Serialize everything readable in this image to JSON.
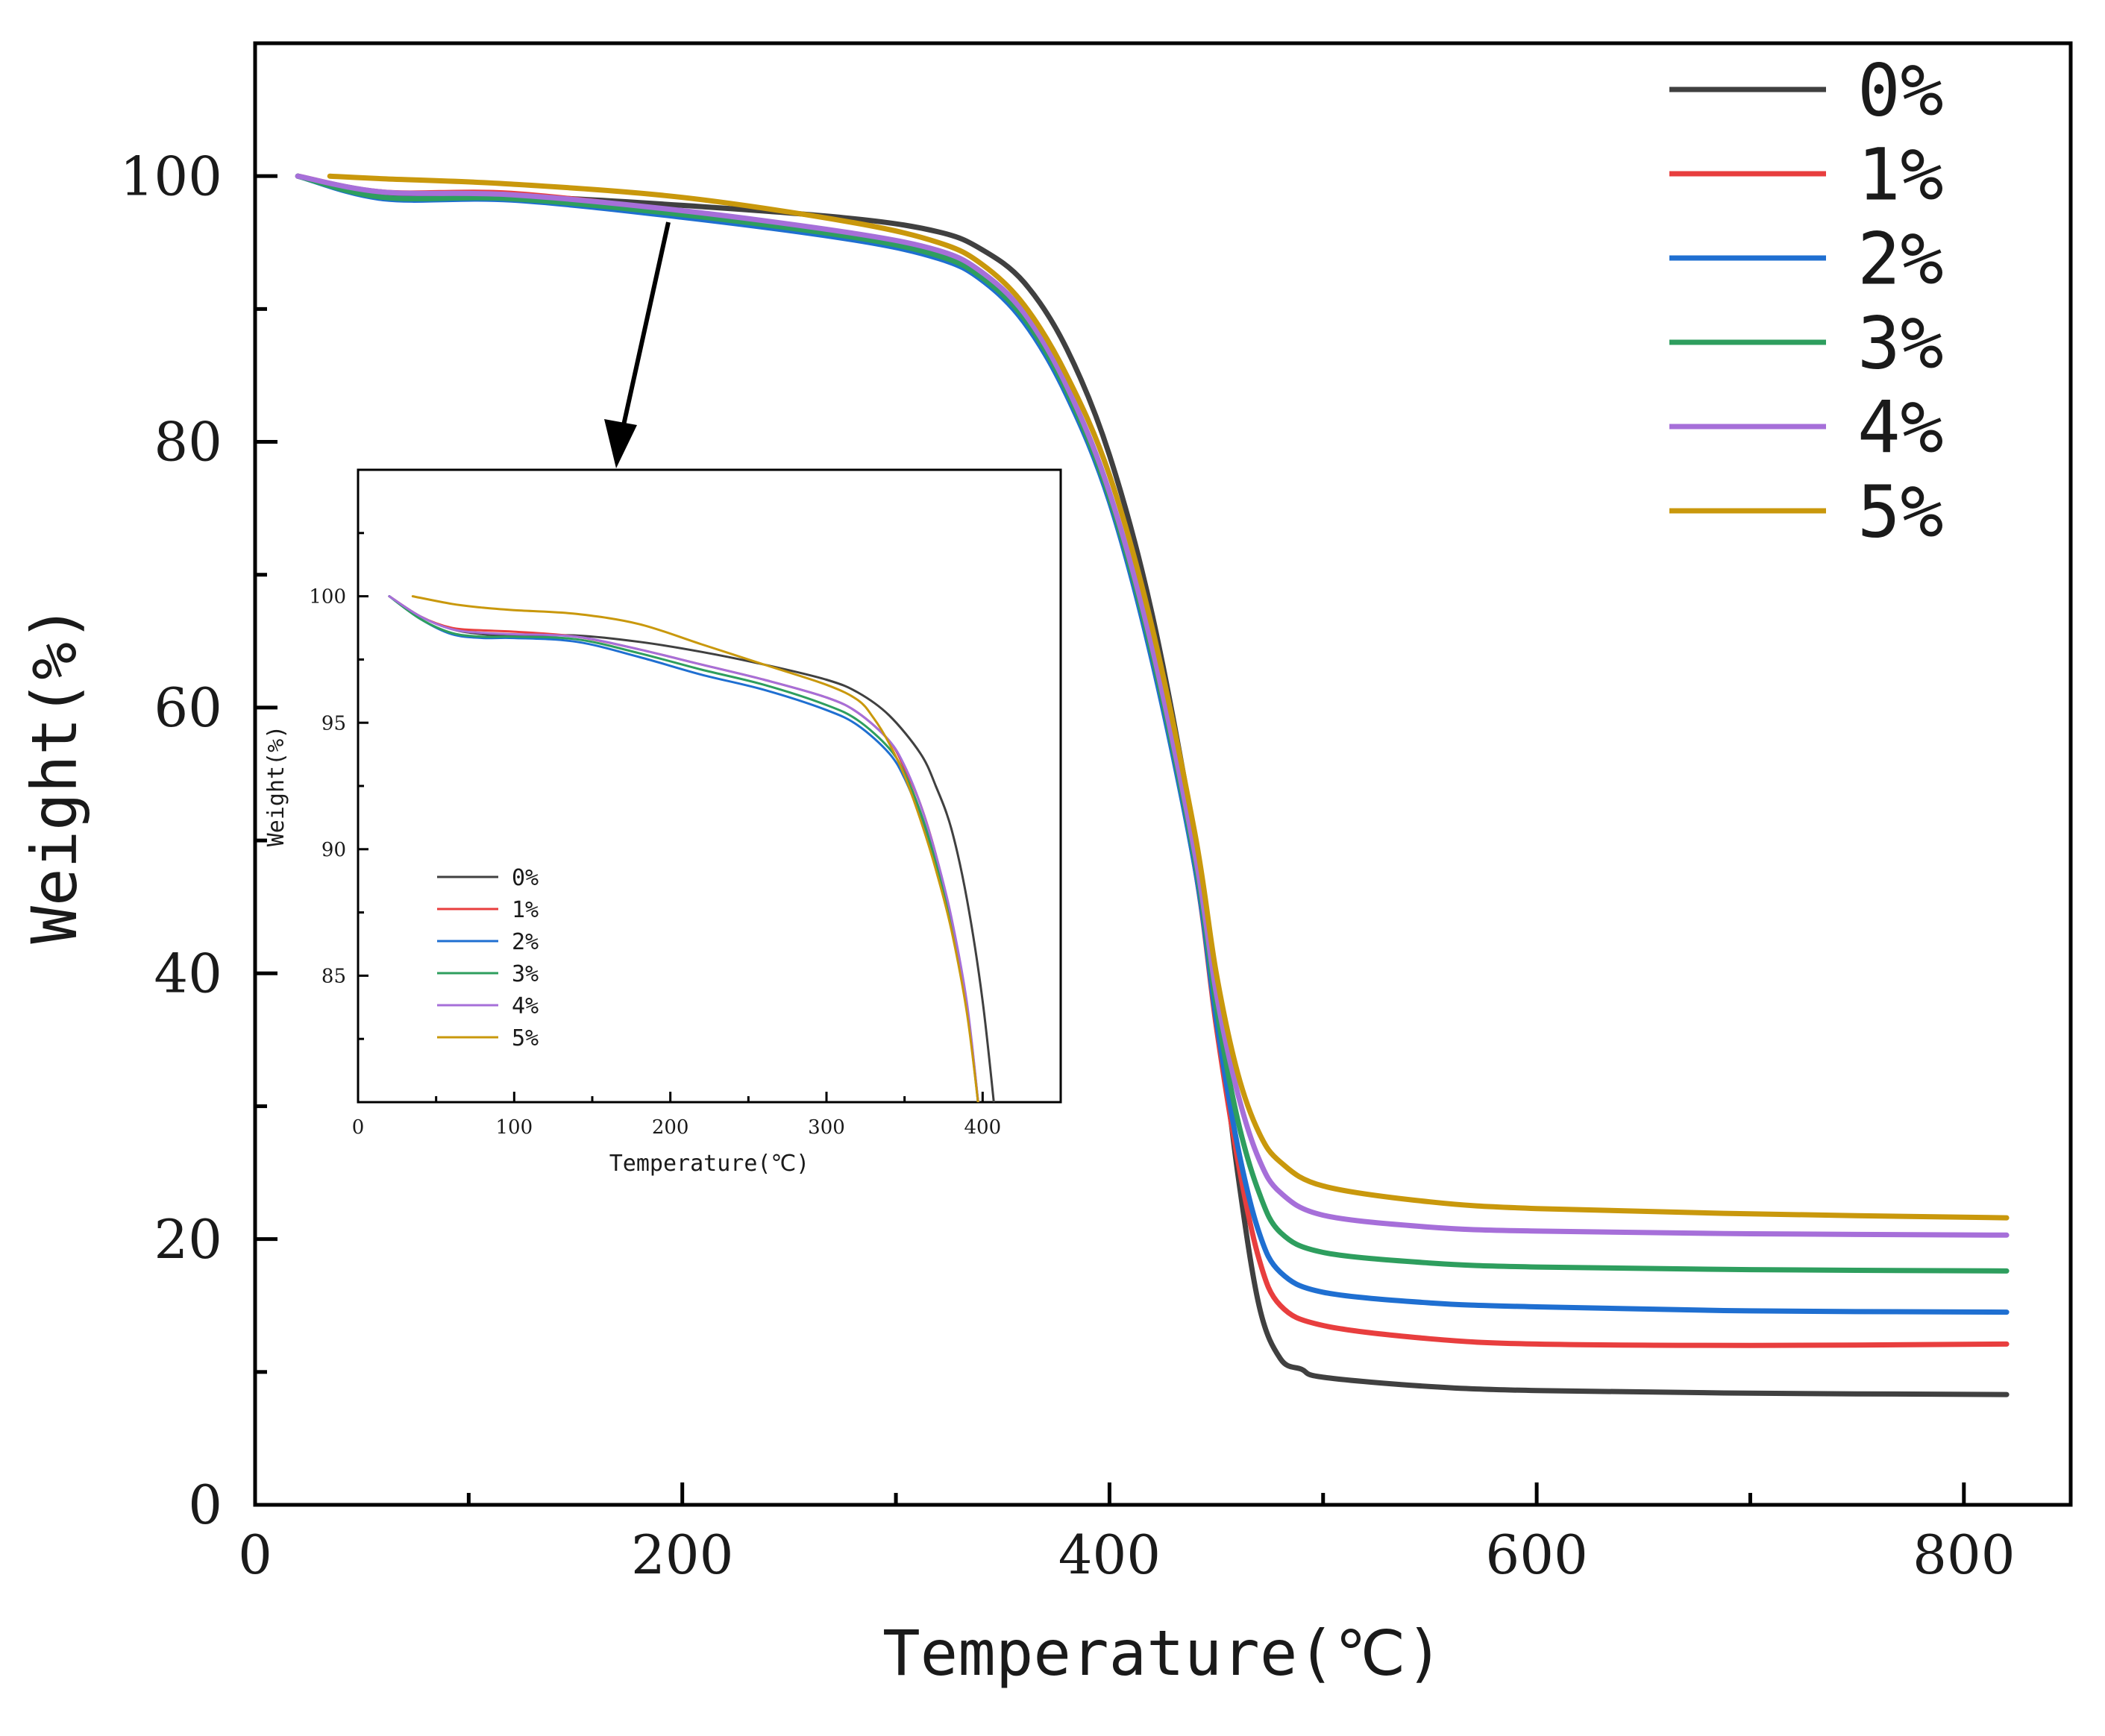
{
  "chart_data": [
    {
      "type": "line",
      "xlabel": "Temperature(℃)",
      "ylabel": "Weight(%)",
      "xlim": [
        0,
        850
      ],
      "ylim": [
        0,
        110
      ],
      "xticks": [
        0,
        200,
        400,
        600,
        800
      ],
      "xtick_labels": [
        "0",
        "200",
        "400",
        "600",
        "800"
      ],
      "yticks": [
        0,
        20,
        40,
        60,
        80,
        100
      ],
      "ytick_labels": [
        "0",
        "20",
        "40",
        "60",
        "80",
        "100"
      ],
      "legend_position": "top-right",
      "series": [
        {
          "name": "0%",
          "color": "#404040",
          "x": [
            20,
            60,
            120,
            200,
            280,
            320,
            340,
            360,
            380,
            400,
            420,
            440,
            450,
            460,
            470,
            480,
            490,
            500,
            550,
            600,
            700,
            820
          ],
          "y": [
            100,
            98.6,
            98.5,
            97.8,
            96.8,
            95.8,
            94.5,
            92.0,
            87.0,
            79.0,
            67.0,
            50.0,
            38.0,
            25.0,
            15.0,
            11.0,
            10.2,
            9.6,
            8.9,
            8.6,
            8.4,
            8.3
          ]
        },
        {
          "name": "1%",
          "color": "#e83e3e",
          "x": [
            20,
            60,
            120,
            200,
            280,
            320,
            340,
            360,
            380,
            400,
            420,
            440,
            450,
            460,
            470,
            480,
            500,
            550,
            600,
            700,
            820
          ],
          "y": [
            100,
            98.8,
            98.7,
            97.3,
            95.6,
            94.3,
            92.6,
            89.5,
            84.0,
            76.0,
            64.0,
            48.0,
            36.0,
            26.0,
            18.5,
            15.0,
            13.5,
            12.5,
            12.1,
            12.0,
            12.1
          ]
        },
        {
          "name": "2%",
          "color": "#1f6fd1",
          "x": [
            20,
            60,
            120,
            200,
            280,
            320,
            340,
            360,
            380,
            400,
            420,
            440,
            450,
            460,
            470,
            480,
            500,
            550,
            600,
            700,
            820
          ],
          "y": [
            100,
            98.3,
            98.2,
            96.9,
            95.2,
            93.8,
            92.2,
            89.0,
            83.5,
            75.5,
            63.5,
            48.0,
            36.5,
            27.0,
            20.5,
            17.5,
            16.0,
            15.2,
            14.9,
            14.6,
            14.5
          ]
        },
        {
          "name": "3%",
          "color": "#2e9e5e",
          "x": [
            20,
            60,
            120,
            200,
            280,
            320,
            340,
            360,
            380,
            400,
            420,
            440,
            450,
            460,
            470,
            480,
            500,
            550,
            600,
            700,
            820
          ],
          "y": [
            100,
            98.4,
            98.3,
            97.1,
            95.4,
            94.0,
            92.4,
            89.3,
            83.8,
            75.8,
            64.0,
            48.5,
            37.5,
            29.0,
            23.5,
            20.5,
            19.0,
            18.2,
            17.9,
            17.7,
            17.6
          ]
        },
        {
          "name": "4%",
          "color": "#a66fd9",
          "x": [
            20,
            60,
            120,
            200,
            280,
            320,
            340,
            360,
            380,
            400,
            420,
            440,
            450,
            460,
            470,
            480,
            500,
            550,
            600,
            700,
            820
          ],
          "y": [
            100,
            98.8,
            98.6,
            97.4,
            95.7,
            94.4,
            92.8,
            89.7,
            84.2,
            76.2,
            64.5,
            49.0,
            38.5,
            31.0,
            26.0,
            23.5,
            21.8,
            20.9,
            20.6,
            20.4,
            20.3
          ]
        },
        {
          "name": "5%",
          "color": "#c9980c",
          "x": [
            35,
            60,
            120,
            200,
            280,
            320,
            340,
            360,
            380,
            400,
            420,
            440,
            450,
            460,
            470,
            480,
            500,
            550,
            600,
            700,
            820
          ],
          "y": [
            100,
            99.8,
            99.4,
            98.4,
            96.5,
            95.0,
            93.4,
            90.3,
            85.0,
            77.5,
            66.0,
            50.5,
            40.0,
            32.5,
            28.0,
            25.8,
            24.0,
            22.8,
            22.3,
            21.9,
            21.6
          ]
        }
      ]
    },
    {
      "type": "line",
      "xlabel": "Temperature(℃)",
      "ylabel": "Weight(%)",
      "xlim": [
        0,
        450
      ],
      "ylim": [
        80,
        105
      ],
      "xticks": [
        0,
        100,
        200,
        300,
        400
      ],
      "xtick_labels": [
        "0",
        "100",
        "200",
        "300",
        "400"
      ],
      "yticks": [
        85,
        90,
        95,
        100
      ],
      "ytick_labels": [
        "85",
        "90",
        "95",
        "100"
      ],
      "legend_position": "bottom-left",
      "series": [
        {
          "name": "0%",
          "color": "#404040",
          "x": [
            20,
            40,
            60,
            80,
            100,
            140,
            180,
            220,
            260,
            300,
            320,
            340,
            360,
            370,
            380,
            390,
            400,
            408
          ],
          "y": [
            100,
            99.2,
            98.7,
            98.5,
            98.45,
            98.45,
            98.2,
            97.8,
            97.3,
            96.7,
            96.2,
            95.3,
            93.8,
            92.5,
            90.8,
            88.0,
            84.0,
            79.5
          ]
        },
        {
          "name": "1%",
          "color": "#e83e3e",
          "x": [
            20,
            40,
            60,
            80,
            100,
            140,
            180,
            220,
            260,
            300,
            320,
            340,
            350,
            360,
            370,
            380,
            390,
            398
          ],
          "y": [
            100,
            99.2,
            98.75,
            98.65,
            98.6,
            98.4,
            97.9,
            97.3,
            96.7,
            96.0,
            95.4,
            94.3,
            93.2,
            91.8,
            89.8,
            87.2,
            83.8,
            79.5
          ]
        },
        {
          "name": "2%",
          "color": "#1f6fd1",
          "x": [
            20,
            40,
            60,
            80,
            100,
            140,
            180,
            220,
            260,
            300,
            320,
            340,
            350,
            360,
            370,
            380,
            390,
            398
          ],
          "y": [
            100,
            99.1,
            98.5,
            98.35,
            98.35,
            98.2,
            97.6,
            96.9,
            96.3,
            95.5,
            94.9,
            93.8,
            92.8,
            91.3,
            89.4,
            86.9,
            83.6,
            79.5
          ]
        },
        {
          "name": "3%",
          "color": "#2e9e5e",
          "x": [
            20,
            40,
            60,
            80,
            100,
            140,
            180,
            220,
            260,
            300,
            320,
            340,
            350,
            360,
            370,
            380,
            390,
            398
          ],
          "y": [
            100,
            99.1,
            98.55,
            98.4,
            98.4,
            98.3,
            97.75,
            97.1,
            96.5,
            95.7,
            95.1,
            94.0,
            93.0,
            91.5,
            89.5,
            87.0,
            83.7,
            79.5
          ]
        },
        {
          "name": "4%",
          "color": "#a66fd9",
          "x": [
            20,
            40,
            60,
            80,
            100,
            140,
            180,
            220,
            260,
            300,
            320,
            340,
            350,
            360,
            370,
            380,
            390,
            398
          ],
          "y": [
            100,
            99.2,
            98.7,
            98.55,
            98.5,
            98.4,
            97.9,
            97.3,
            96.7,
            96.0,
            95.4,
            94.3,
            93.3,
            91.8,
            89.8,
            87.3,
            83.9,
            79.5
          ]
        },
        {
          "name": "5%",
          "color": "#c9980c",
          "x": [
            35,
            60,
            80,
            100,
            140,
            180,
            220,
            260,
            300,
            320,
            330,
            340,
            350,
            360,
            370,
            380,
            390,
            398
          ],
          "y": [
            100,
            99.7,
            99.55,
            99.45,
            99.3,
            98.9,
            98.1,
            97.3,
            96.5,
            95.9,
            95.2,
            94.2,
            92.9,
            91.2,
            89.2,
            86.8,
            83.5,
            79.5
          ]
        }
      ]
    }
  ]
}
